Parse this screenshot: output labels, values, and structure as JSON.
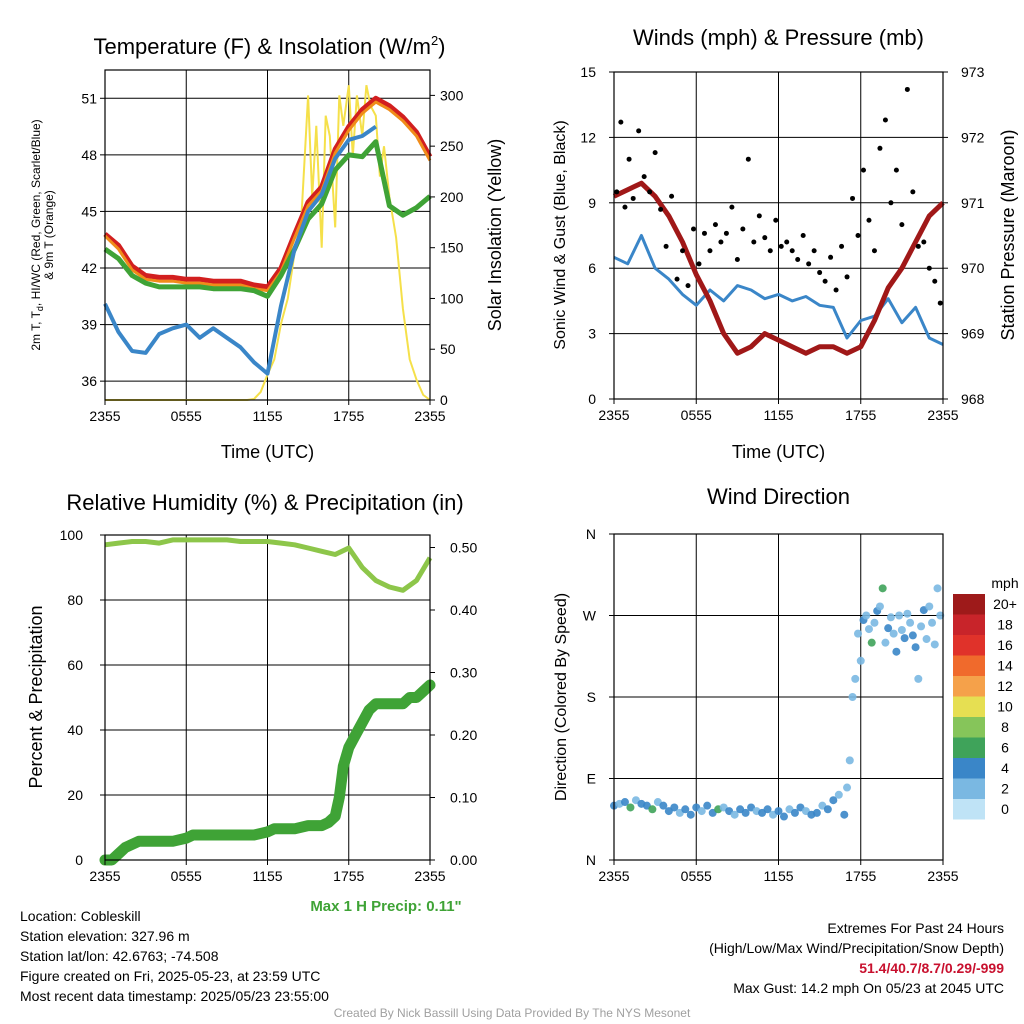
{
  "chart_data": [
    {
      "type": "line",
      "title_main": "Temperature (F) & Insolation (W/m",
      "title_sup": "2",
      "title_end": ")",
      "xlabel": "Time (UTC)",
      "ylabel_lines": [
        "2m T, T",
        "d",
        ", HI/WC (Red, Green, Scarlet/Blue)",
        "& 9m T (Orange)"
      ],
      "y2label": "Solar Insolation (Yellow)",
      "x_ticks": [
        "2355",
        "0555",
        "1155",
        "1755",
        "2355"
      ],
      "ylim": [
        35,
        52.5
      ],
      "y_ticks": [
        "36",
        "39",
        "42",
        "45",
        "48",
        "51"
      ],
      "y2lim": [
        0,
        325
      ],
      "y2_ticks": [
        "0",
        "50",
        "100",
        "150",
        "200",
        "250",
        "300"
      ],
      "hours": [
        0,
        1,
        2,
        3,
        4,
        5,
        6,
        7,
        8,
        9,
        10,
        11,
        12,
        13,
        14,
        15,
        16,
        17,
        18,
        19,
        20,
        21,
        22,
        23,
        24
      ],
      "series": [
        {
          "color": "#d21f1f",
          "values": [
            43.8,
            43.2,
            42.1,
            41.6,
            41.5,
            41.5,
            41.4,
            41.4,
            41.3,
            41.3,
            41.3,
            41.1,
            41.0,
            42.0,
            43.8,
            45.5,
            46.3,
            48.3,
            49.5,
            50.4,
            51.0,
            50.6,
            50.0,
            49.2,
            47.9
          ]
        },
        {
          "color": "#f08c1a",
          "values": [
            43.7,
            43.0,
            41.9,
            41.4,
            41.3,
            41.3,
            41.2,
            41.2,
            41.1,
            41.1,
            41.1,
            40.9,
            40.8,
            41.8,
            43.6,
            45.3,
            46.1,
            48.1,
            49.3,
            50.2,
            50.8,
            50.4,
            49.8,
            49.0,
            47.7
          ]
        },
        {
          "color": "#3fa336",
          "values": [
            43.0,
            42.5,
            41.6,
            41.2,
            41.0,
            41.0,
            41.0,
            41.0,
            40.9,
            40.9,
            40.9,
            40.8,
            40.5,
            41.6,
            43.0,
            44.6,
            45.4,
            47.2,
            48.0,
            47.9,
            48.7,
            45.3,
            44.8,
            45.2,
            45.8
          ]
        },
        {
          "color": "#3a86c8",
          "values": [
            40.1,
            38.6,
            37.6,
            37.5,
            38.5,
            38.8,
            39.0,
            38.3,
            38.8,
            38.3,
            37.8,
            37.0,
            36.4,
            40.0,
            43.0,
            45.0,
            45.9,
            47.8,
            48.8,
            49.0,
            49.5,
            null,
            null,
            null,
            null
          ]
        }
      ],
      "insolation_hours": [
        0,
        0.5,
        1,
        1.5,
        2,
        2.5,
        3,
        3.5,
        4,
        4.5,
        5,
        5.5,
        6,
        6.5,
        7,
        7.5,
        8,
        8.5,
        9,
        9.5,
        10,
        10.5,
        11,
        11.5,
        12,
        12.5,
        13,
        13.5,
        14,
        14.5,
        15,
        15.3,
        15.6,
        16,
        16.3,
        16.6,
        17,
        17.3,
        17.6,
        18,
        18.3,
        18.6,
        19,
        19.3,
        19.6,
        20,
        20.3,
        20.6,
        21,
        21.5,
        22,
        22.5,
        23,
        23.5,
        24
      ],
      "insolation": [
        0,
        0,
        0,
        0,
        0,
        0,
        0,
        0,
        0,
        0,
        0,
        0,
        0,
        0,
        0,
        0,
        0,
        0,
        0,
        0,
        0,
        0,
        1,
        8,
        25,
        40,
        75,
        100,
        145,
        180,
        300,
        200,
        270,
        150,
        280,
        260,
        170,
        300,
        270,
        310,
        240,
        300,
        260,
        310,
        290,
        280,
        220,
        250,
        200,
        160,
        90,
        40,
        20,
        5,
        0
      ]
    },
    {
      "type": "line",
      "title": "Winds (mph) & Pressure (mb)",
      "xlabel": "Time (UTC)",
      "ylabel": "Sonic Wind & Gust (Blue, Black)",
      "y2label": "Station Pressure (Maroon)",
      "x_ticks": [
        "2355",
        "0555",
        "1155",
        "1755",
        "2355"
      ],
      "ylim": [
        0,
        15
      ],
      "y_ticks": [
        "0",
        "3",
        "6",
        "9",
        "12",
        "15"
      ],
      "y2lim": [
        968,
        973
      ],
      "y2_ticks": [
        "968",
        "969",
        "970",
        "971",
        "972",
        "973"
      ],
      "hours": [
        0,
        1,
        2,
        3,
        4,
        5,
        6,
        7,
        8,
        9,
        10,
        11,
        12,
        13,
        14,
        15,
        16,
        17,
        18,
        19,
        20,
        21,
        22,
        23,
        24
      ],
      "wind": [
        6.5,
        6.2,
        7.5,
        6.0,
        5.5,
        4.8,
        4.3,
        5.0,
        4.5,
        5.2,
        5.0,
        4.6,
        4.8,
        4.5,
        4.7,
        4.3,
        4.2,
        2.8,
        3.6,
        3.8,
        4.6,
        3.5,
        4.2,
        2.8,
        2.5
      ],
      "gust_hours": [
        0.2,
        0.5,
        0.8,
        1.1,
        1.4,
        1.8,
        2.2,
        2.6,
        3.0,
        3.4,
        3.8,
        4.2,
        4.6,
        5.0,
        5.4,
        5.8,
        6.2,
        6.6,
        7.0,
        7.4,
        7.8,
        8.2,
        8.6,
        9.0,
        9.4,
        9.8,
        10.2,
        10.6,
        11.0,
        11.4,
        11.8,
        12.2,
        12.6,
        13.0,
        13.4,
        13.8,
        14.2,
        14.6,
        15.0,
        15.4,
        15.8,
        16.2,
        16.6,
        17.0,
        17.4,
        17.8,
        18.2,
        18.6,
        19.0,
        19.4,
        19.8,
        20.2,
        20.6,
        21.0,
        21.4,
        21.8,
        22.2,
        22.6,
        23.0,
        23.4,
        23.8
      ],
      "gust": [
        9.5,
        12.7,
        8.8,
        11.0,
        9.2,
        12.3,
        10.2,
        9.5,
        11.3,
        8.7,
        7.0,
        9.3,
        5.5,
        6.8,
        5.2,
        7.8,
        6.2,
        7.6,
        6.8,
        8.0,
        7.2,
        7.6,
        8.8,
        6.4,
        7.8,
        11.0,
        7.2,
        8.4,
        7.4,
        6.8,
        8.2,
        7.0,
        7.2,
        6.8,
        6.4,
        7.5,
        6.2,
        6.8,
        5.8,
        5.4,
        6.5,
        5.0,
        7.0,
        5.6,
        9.2,
        7.5,
        10.5,
        8.2,
        6.8,
        11.5,
        12.8,
        9.0,
        10.5,
        8.0,
        14.2,
        9.5,
        7.0,
        7.2,
        6.0,
        5.4,
        4.4
      ],
      "pressure": [
        971.1,
        971.2,
        971.3,
        971.1,
        970.8,
        970.4,
        969.9,
        969.5,
        969.0,
        968.7,
        968.8,
        969.0,
        968.9,
        968.8,
        968.7,
        968.8,
        968.8,
        968.7,
        968.8,
        969.2,
        969.7,
        970.0,
        970.4,
        970.8,
        971.0
      ]
    },
    {
      "type": "line",
      "title": "Relative Humidity (%) & Precipitation (in)",
      "ylabel": "Percent & Precipitation",
      "x_ticks": [
        "2355",
        "0555",
        "1155",
        "1755",
        "2355"
      ],
      "ylim": [
        0,
        100
      ],
      "y_ticks": [
        "0",
        "20",
        "40",
        "60",
        "80",
        "100"
      ],
      "y2lim": [
        0,
        0.52
      ],
      "y2_ticks": [
        "0.00",
        "0.10",
        "0.20",
        "0.30",
        "0.40",
        "0.50"
      ],
      "hours": [
        0,
        1,
        2,
        3,
        4,
        5,
        6,
        7,
        8,
        9,
        10,
        11,
        12,
        13,
        14,
        15,
        16,
        17,
        18,
        19,
        20,
        21,
        22,
        23,
        24
      ],
      "rh": [
        97,
        97.5,
        98,
        98,
        97.5,
        98.5,
        98.5,
        98.5,
        98.5,
        98.5,
        98,
        98,
        98,
        97.5,
        97,
        96,
        95,
        94,
        96,
        90,
        86,
        84,
        83,
        86,
        93
      ],
      "precip_hours": [
        0,
        0.5,
        1,
        1.5,
        2,
        2.5,
        3,
        4,
        5,
        6,
        6.5,
        7,
        8,
        9,
        10,
        11,
        12,
        12.5,
        13,
        14,
        15,
        16,
        16.5,
        17,
        17.3,
        17.6,
        18,
        18.5,
        19,
        19.5,
        20,
        20.5,
        21,
        22,
        22.5,
        23,
        23.5,
        24
      ],
      "precip": [
        0,
        0,
        0.01,
        0.02,
        0.025,
        0.03,
        0.03,
        0.03,
        0.03,
        0.035,
        0.04,
        0.04,
        0.04,
        0.04,
        0.04,
        0.04,
        0.045,
        0.05,
        0.05,
        0.05,
        0.055,
        0.055,
        0.06,
        0.07,
        0.1,
        0.15,
        0.18,
        0.2,
        0.22,
        0.24,
        0.25,
        0.25,
        0.25,
        0.25,
        0.26,
        0.26,
        0.27,
        0.28
      ]
    },
    {
      "type": "scatter",
      "title": "Wind Direction",
      "ylabel": "Direction (Colored By Speed)",
      "x_ticks": [
        "2355",
        "0555",
        "1155",
        "1755",
        "2355"
      ],
      "y_ticks": [
        "N",
        "E",
        "S",
        "W",
        "N"
      ],
      "ylim": [
        0,
        360
      ],
      "legend_title": "mph",
      "legend_labels": [
        "20+",
        "18",
        "16",
        "14",
        "12",
        "10",
        "8",
        "6",
        "4",
        "2",
        "0"
      ],
      "legend_colors": [
        "#9e1a1a",
        "#c8242a",
        "#e0322a",
        "#f06a2c",
        "#f5a14a",
        "#e6df52",
        "#86c55a",
        "#3fa35a",
        "#3a86c8",
        "#7ab8e2",
        "#bfe3f6"
      ],
      "hours": [
        0,
        0.4,
        0.8,
        1.2,
        1.6,
        2.0,
        2.4,
        2.8,
        3.2,
        3.6,
        4.0,
        4.4,
        4.8,
        5.2,
        5.6,
        6.0,
        6.4,
        6.8,
        7.2,
        7.6,
        8.0,
        8.4,
        8.8,
        9.2,
        9.6,
        10.0,
        10.4,
        10.8,
        11.2,
        11.6,
        12.0,
        12.4,
        12.8,
        13.2,
        13.6,
        14.0,
        14.4,
        14.8,
        15.2,
        15.6,
        16.0,
        16.4,
        16.8,
        17.0,
        17.2,
        17.4,
        17.6,
        17.8,
        18.0,
        18.2,
        18.4,
        18.6,
        18.8,
        19.0,
        19.2,
        19.4,
        19.6,
        19.8,
        20.0,
        20.2,
        20.4,
        20.6,
        20.8,
        21.0,
        21.2,
        21.4,
        21.6,
        21.8,
        22.0,
        22.2,
        22.4,
        22.6,
        22.8,
        23.0,
        23.2,
        23.4,
        23.6,
        23.8
      ],
      "direction": [
        60,
        62,
        64,
        58,
        66,
        62,
        60,
        56,
        64,
        60,
        54,
        58,
        52,
        56,
        50,
        58,
        54,
        60,
        52,
        56,
        58,
        54,
        50,
        56,
        52,
        58,
        54,
        52,
        56,
        50,
        54,
        48,
        56,
        52,
        58,
        54,
        50,
        52,
        60,
        56,
        66,
        72,
        50,
        80,
        110,
        180,
        200,
        250,
        220,
        265,
        270,
        255,
        240,
        262,
        275,
        280,
        300,
        240,
        256,
        268,
        250,
        230,
        270,
        254,
        245,
        272,
        262,
        248,
        235,
        200,
        258,
        276,
        244,
        280,
        262,
        238,
        300,
        270
      ],
      "speed": [
        4,
        3,
        5,
        6,
        3,
        4,
        4,
        6,
        3,
        4,
        5,
        4,
        3,
        4,
        4,
        5,
        3,
        4,
        4,
        6,
        3,
        4,
        3,
        4,
        5,
        4,
        3,
        4,
        4,
        3,
        4,
        5,
        3,
        4,
        4,
        3,
        4,
        5,
        3,
        4,
        4,
        3,
        4,
        3,
        2,
        2,
        3,
        2,
        3,
        4,
        3,
        2,
        6,
        3,
        4,
        3,
        6,
        2,
        4,
        3,
        2,
        4,
        3,
        3,
        4,
        2,
        3,
        4,
        5,
        3,
        2,
        4,
        3,
        2,
        3,
        2,
        3,
        2
      ]
    }
  ],
  "annotations": {
    "max_precip": "Max 1 H Precip: 0.11\""
  },
  "info": {
    "location": "Location: Cobleskill",
    "elevation": "Station elevation: 327.96 m",
    "latlon": "Station lat/lon: 42.6763; -74.508",
    "created": "Figure created on Fri, 2025-05-23, at 23:59 UTC",
    "recent": "Most recent data timestamp: 2025/05/23 23:55:00"
  },
  "extremes": {
    "title": "Extremes For Past 24 Hours",
    "subtitle": "(High/Low/Max Wind/Precipitation/Snow Depth)",
    "values": "51.4/40.7/8.7/0.29/-999",
    "max_gust": "Max Gust: 14.2 mph On 05/23 at 2045 UTC"
  },
  "credit": "Created By Nick Bassill Using Data Provided By The NYS Mesonet"
}
